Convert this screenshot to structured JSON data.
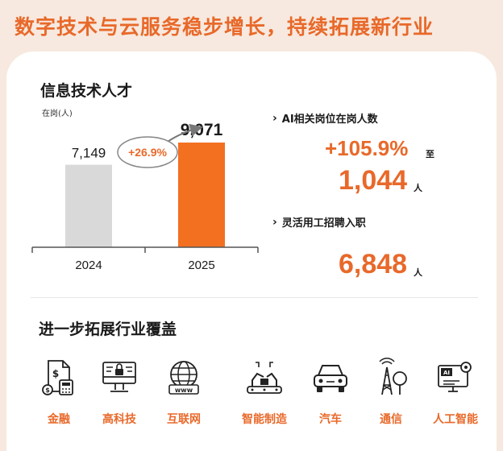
{
  "headline": "数字技术与云服务稳步增长，持续拓展新行业",
  "talent": {
    "title": "信息技术人才",
    "unit_note": "在岗(人)"
  },
  "chart_data": {
    "type": "bar",
    "categories": [
      "2024",
      "2025"
    ],
    "values": [
      7149,
      9071
    ],
    "value_labels": [
      "7,149",
      "9,071"
    ],
    "growth_label": "+26.9%",
    "ylabel": "在岗(人)",
    "ylim": [
      0,
      10000
    ],
    "bar_colors": [
      "#d9d9d9",
      "#f37021"
    ]
  },
  "metrics": {
    "ai": {
      "label": "AI相关岗位在岗人数",
      "growth": "+105.9%",
      "growth_suffix": "至",
      "value": "1,044",
      "value_suffix": "人"
    },
    "flex": {
      "label": "灵活用工招聘入职",
      "value": "6,848",
      "value_suffix": "人"
    }
  },
  "industries": {
    "title": "进一步拓展行业覆盖",
    "items": [
      {
        "label": "金融",
        "icon": "finance-icon"
      },
      {
        "label": "高科技",
        "icon": "chip-icon"
      },
      {
        "label": "互联网",
        "icon": "globe-www-icon"
      },
      {
        "label": "智能制造",
        "icon": "robot-arm-icon"
      },
      {
        "label": "汽车",
        "icon": "car-icon"
      },
      {
        "label": "通信",
        "icon": "antenna-icon"
      },
      {
        "label": "人工智能",
        "icon": "ai-monitor-icon"
      }
    ]
  },
  "colors": {
    "accent": "#e8692a",
    "bar_2025": "#f37021",
    "bar_2024": "#d9d9d9"
  }
}
